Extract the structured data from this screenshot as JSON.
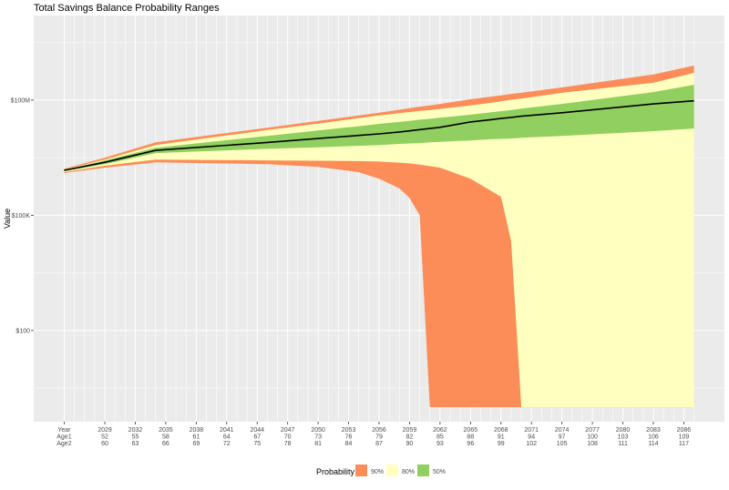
{
  "chart_data": {
    "type": "area",
    "title": "Total Savings Balance Probability Ranges",
    "xlabel": "",
    "ylabel": "Value",
    "y_scale": "log",
    "ylim": [
      0.42,
      16000000000
    ],
    "xlim": [
      2022,
      2090
    ],
    "grid": true,
    "legend": {
      "title": "Probability",
      "placement": "bottom",
      "entries": [
        {
          "label": "90%",
          "color": "#FC8D59"
        },
        {
          "label": "80%",
          "color": "#FFFFBF"
        },
        {
          "label": "50%",
          "color": "#91CF60"
        }
      ]
    },
    "median_line_color": "#000000",
    "panel_color": "#EBEBEB",
    "y_ticks": [
      {
        "value": 100,
        "label": "$100"
      },
      {
        "value": 100000,
        "label": "$100K"
      },
      {
        "value": 100000000,
        "label": "$100M"
      }
    ],
    "x_tick_header": {
      "year": 2025,
      "lines": [
        "Year",
        "Age1",
        "Age2"
      ]
    },
    "x_ticks": [
      {
        "year": 2029,
        "lines": [
          "2029",
          "52",
          "60"
        ]
      },
      {
        "year": 2032,
        "lines": [
          "2032",
          "55",
          "63"
        ]
      },
      {
        "year": 2035,
        "lines": [
          "2035",
          "58",
          "66"
        ]
      },
      {
        "year": 2038,
        "lines": [
          "2038",
          "61",
          "69"
        ]
      },
      {
        "year": 2041,
        "lines": [
          "2041",
          "64",
          "72"
        ]
      },
      {
        "year": 2044,
        "lines": [
          "2044",
          "67",
          "75"
        ]
      },
      {
        "year": 2047,
        "lines": [
          "2047",
          "70",
          "78"
        ]
      },
      {
        "year": 2050,
        "lines": [
          "2050",
          "73",
          "81"
        ]
      },
      {
        "year": 2053,
        "lines": [
          "2053",
          "76",
          "84"
        ]
      },
      {
        "year": 2056,
        "lines": [
          "2056",
          "79",
          "87"
        ]
      },
      {
        "year": 2059,
        "lines": [
          "2059",
          "82",
          "90"
        ]
      },
      {
        "year": 2062,
        "lines": [
          "2062",
          "85",
          "93"
        ]
      },
      {
        "year": 2065,
        "lines": [
          "2065",
          "88",
          "96"
        ]
      },
      {
        "year": 2068,
        "lines": [
          "2068",
          "91",
          "99"
        ]
      },
      {
        "year": 2071,
        "lines": [
          "2071",
          "94",
          "102"
        ]
      },
      {
        "year": 2074,
        "lines": [
          "2074",
          "97",
          "105"
        ]
      },
      {
        "year": 2077,
        "lines": [
          "2077",
          "100",
          "108"
        ]
      },
      {
        "year": 2080,
        "lines": [
          "2080",
          "103",
          "111"
        ]
      },
      {
        "year": 2083,
        "lines": [
          "2083",
          "106",
          "114"
        ]
      },
      {
        "year": 2086,
        "lines": [
          "2086",
          "109",
          "117"
        ]
      }
    ],
    "x": [
      2025,
      2029,
      2034,
      2045,
      2050,
      2054,
      2056,
      2058,
      2059,
      2060,
      2061,
      2062,
      2065,
      2067,
      2068,
      2069,
      2070,
      2074,
      2083,
      2087
    ],
    "bands": [
      {
        "name": "90%",
        "color": "#FC8D59",
        "lower": [
          1260000,
          1740000,
          2400000,
          2140000,
          1820000,
          1320000,
          891000,
          501000,
          282000,
          100000,
          1,
          1,
          1,
          1,
          1,
          1,
          1,
          1,
          1,
          1
        ],
        "upper": [
          1620000,
          3160000,
          7940000,
          19100000,
          28800000,
          39800000,
          46800000,
          56200000,
          61700000,
          67600000,
          72400000,
          79400000,
          105000000,
          123000000,
          132000000,
          145000000,
          155000000,
          214000000,
          468000000,
          794000000
        ]
      },
      {
        "name": "80%",
        "color": "#FFFFBF",
        "lower": [
          1320000,
          1950000,
          2820000,
          2690000,
          2630000,
          2570000,
          2510000,
          2340000,
          2240000,
          2090000,
          1910000,
          1740000,
          891000,
          437000,
          302000,
          21400,
          1,
          1,
          1,
          1
        ],
        "upper": [
          1550000,
          2820000,
          6760000,
          16600000,
          24500000,
          33900000,
          39800000,
          45700000,
          49000000,
          52500000,
          55000000,
          58900000,
          72400000,
          85100000,
          93300000,
          102000000,
          110000000,
          155000000,
          282000000,
          513000000
        ]
      },
      {
        "name": "50%",
        "color": "#91CF60",
        "lower": [
          1380000,
          2140000,
          4170000,
          5370000,
          5890000,
          6460000,
          6760000,
          7240000,
          7410000,
          7590000,
          7940000,
          8130000,
          8910000,
          9550000,
          9770000,
          10000000,
          10500000,
          11700000,
          15500000,
          18200000
        ],
        "upper": [
          1510000,
          2690000,
          5750000,
          11700000,
          16200000,
          20900000,
          24000000,
          26900000,
          28800000,
          30900000,
          32400000,
          34700000,
          41700000,
          47900000,
          51300000,
          55000000,
          60300000,
          79400000,
          162000000,
          251000000
        ]
      }
    ],
    "median": [
      1480000,
      2400000,
      4900000,
      7900000,
      10000000,
      12000000,
      13200000,
      14800000,
      15800000,
      17000000,
      18200000,
      19500000,
      26900000,
      30900000,
      33100000,
      35500000,
      38000000,
      46800000,
      79400000,
      95500000
    ]
  }
}
